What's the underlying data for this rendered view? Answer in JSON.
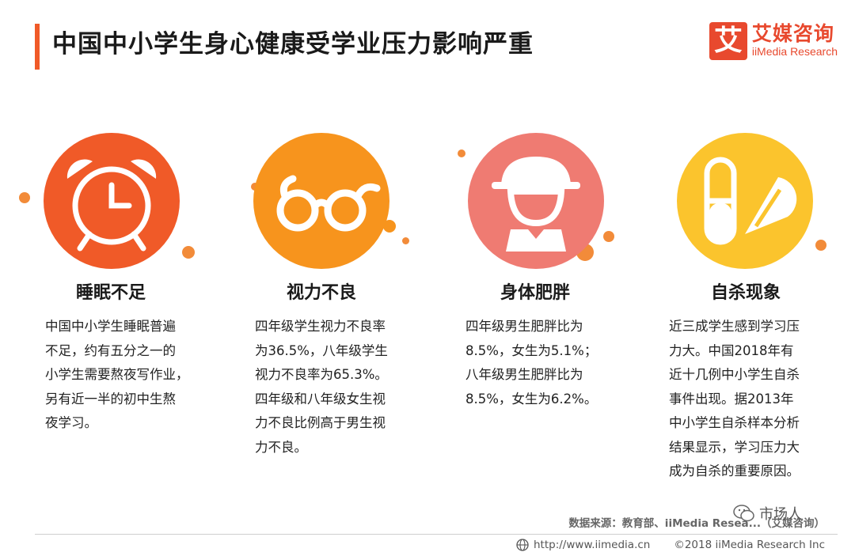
{
  "header": {
    "title": "中国中小学生身心健康受学业压力影响严重"
  },
  "brand": {
    "logo_char": "艾",
    "name_cn": "艾媒咨询",
    "name_en": "iiMedia Research"
  },
  "cards": [
    {
      "title": "睡眠不足",
      "icon": "alarm-clock-icon",
      "color": "#f05a28",
      "lines": [
        "中国中小学生睡眠普遍",
        "不足，约有五分之一的",
        "小学生需要熬夜写作业，",
        "另有近一半的初中生熬",
        "夜学习。"
      ]
    },
    {
      "title": "视力不良",
      "icon": "glasses-icon",
      "color": "#f7941d",
      "lines": [
        "四年级学生视力不良率",
        "为36.5%，八年级学生",
        "视力不良率为65.3%。",
        "四年级和八年级女生视",
        "力不良比例高于男生视",
        "力不良。"
      ]
    },
    {
      "title": "身体肥胖",
      "icon": "student-cap-icon",
      "color": "#ef7b72",
      "lines": [
        "四年级男生肥胖比为",
        "8.5%，女生为5.1%；",
        "八年级男生肥胖比为",
        "8.5%，女生为6.2%。"
      ]
    },
    {
      "title": "自杀现象",
      "icon": "pills-icon",
      "color": "#fbc42d",
      "lines": [
        "近三成学生感到学习压",
        "力大。中国2018年有",
        "近十几例中小学生自杀",
        "事件出现。据2013年",
        "中小学生自杀样本分析",
        "结果显示，学习压力大",
        "成为自杀的重要原因。"
      ]
    }
  ],
  "footer": {
    "source": "数据来源：教育部、iiMedia Resea...（艾媒咨询）",
    "url": "http://www.iimedia.cn",
    "copyright": "©2018 iiMedia Research Inc",
    "watermark": "市场人"
  }
}
